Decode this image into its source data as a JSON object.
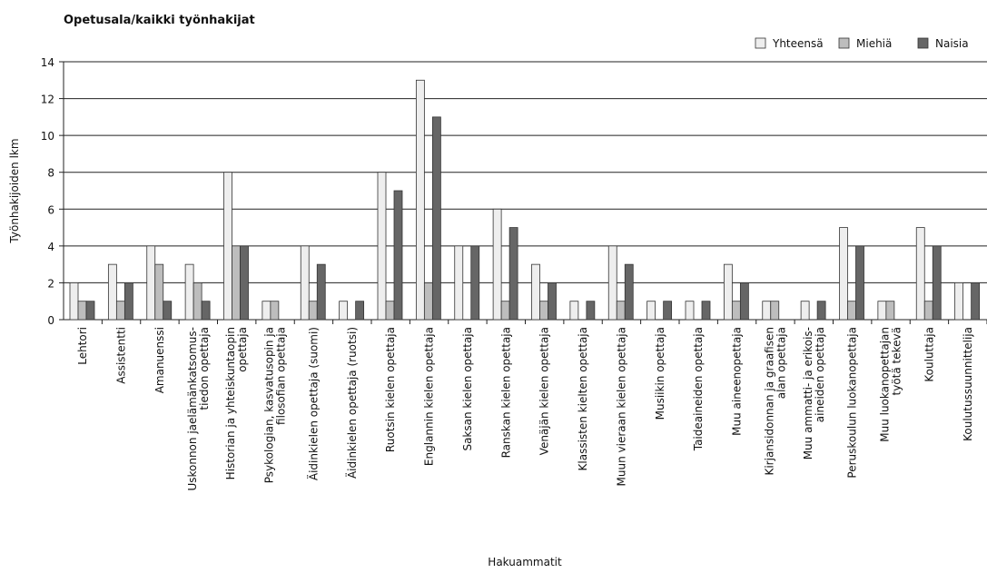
{
  "chart_data": {
    "type": "bar",
    "title": "Opetusala/kaikki työnhakijat",
    "x_label": "Hakuammatit",
    "y_label": "Työnhakijoiden lkm",
    "categories": [
      "Lehtori",
      "Assistentti",
      "Amanuenssi",
      "Uskonnon jaelämänkatsomus-\ntiedon opettaja",
      "Historian ja yhteiskuntaopin\nopettaja",
      "Psykologian,  kasvatusopin ja\nfilosofian opettaja",
      "Äidinkielen opettaja (suomi)",
      "Äidinkielen opettaja (ruotsi)",
      "Ruotsin kielen opettaja",
      "Englannin kielen opettaja",
      "Saksan kielen opettaja",
      "Ranskan kielen opettaja",
      "Venäjän kielen opettaja",
      "Klassisten kielten opettaja",
      "Muun vieraan kielen opettaja",
      "Musiikin opettaja",
      "Taideaineiden opettaja",
      "Muu aineenopettaja",
      "Kirjansidonnan ja graafisen\nalan opettaja",
      "Muu ammatti- ja erikois-\naineiden opettaja",
      "Peruskoulun luokanopettaja",
      "Muu luokanopettajan\ntyötä tekevä",
      "Kouluttaja",
      "Koulutussuunnittelija"
    ],
    "series": [
      {
        "name": "Yhteensä",
        "color": "#eeeeee",
        "values": [
          2,
          3,
          4,
          3,
          8,
          1,
          4,
          1,
          8,
          13,
          4,
          6,
          3,
          1,
          4,
          1,
          1,
          3,
          1,
          1,
          5,
          1,
          5,
          2
        ]
      },
      {
        "name": "Miehiä",
        "color": "#bdbdbd",
        "values": [
          1,
          1,
          3,
          2,
          4,
          1,
          1,
          0,
          1,
          2,
          0,
          1,
          1,
          0,
          1,
          0,
          0,
          1,
          1,
          0,
          1,
          1,
          1,
          0
        ]
      },
      {
        "name": "Naisia",
        "color": "#666666",
        "values": [
          1,
          2,
          1,
          1,
          4,
          0,
          3,
          1,
          7,
          11,
          4,
          5,
          2,
          1,
          3,
          1,
          1,
          2,
          0,
          1,
          4,
          0,
          4,
          2
        ]
      }
    ],
    "ylim": [
      0,
      14
    ],
    "yticks": [
      0,
      2,
      4,
      6,
      8,
      10,
      12,
      14
    ],
    "grid": true,
    "legend": "top-right"
  }
}
